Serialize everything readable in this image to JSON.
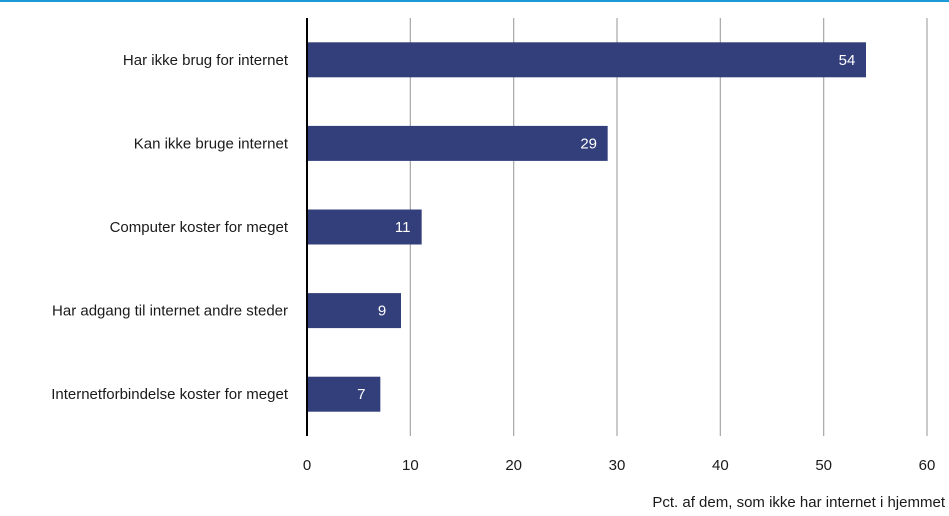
{
  "chart_data": {
    "type": "bar",
    "orientation": "horizontal",
    "categories": [
      "Har  ikke brug for internet",
      "Kan ikke bruge internet",
      "Computer koster for meget",
      "Har adgang til internet andre steder",
      "Internetforbindelse koster for meget"
    ],
    "values": [
      54,
      29,
      11,
      9,
      7
    ],
    "data_labels": [
      "54",
      "29",
      "11",
      "9",
      "7"
    ],
    "xticks": [
      "0",
      "10",
      "20",
      "30",
      "40",
      "50",
      "60"
    ],
    "xlim": [
      0,
      60
    ],
    "xlabel": "Pct. af dem, som ikke har internet i hjemmet",
    "grid": "vertical",
    "colors": {
      "bar": "#333f7a",
      "grid": "#a6a6a6",
      "axis": "#000000",
      "accent_line": "#1a9ad6"
    }
  }
}
